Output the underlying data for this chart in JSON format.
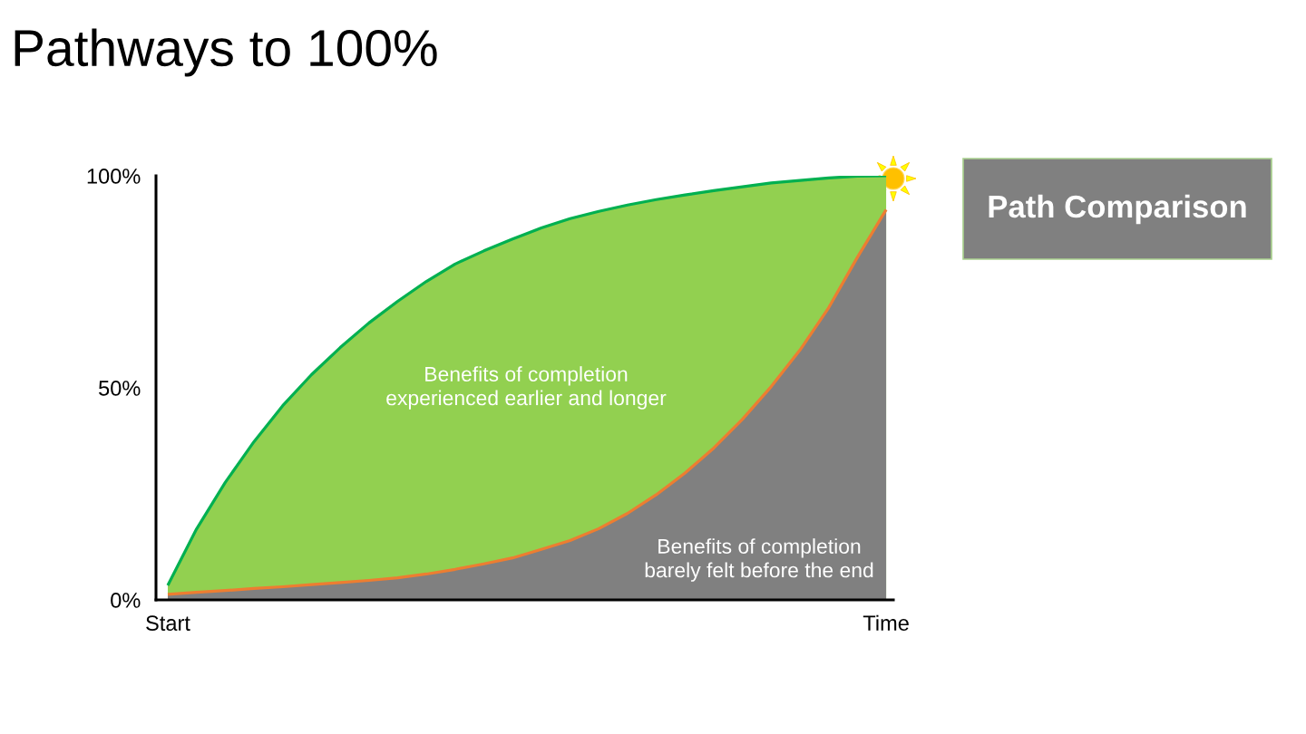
{
  "chart_data": {
    "type": "area",
    "title": "Pathways to 100%",
    "categories": [
      "Start",
      null,
      null,
      null,
      null,
      null,
      null,
      null,
      null,
      null,
      null,
      null,
      null,
      null,
      null,
      null,
      null,
      null,
      null,
      null,
      null,
      null,
      null,
      null,
      null,
      "Time"
    ],
    "ylim": [
      0,
      100
    ],
    "yticks": [
      {
        "value": 0,
        "label": "0%"
      },
      {
        "value": 50,
        "label": "50%"
      },
      {
        "value": 100,
        "label": "100%"
      }
    ],
    "series": [
      {
        "color": "#92d050",
        "values": [
          3.4,
          16.7,
          27.7,
          37.3,
          45.8,
          53.1,
          59.5,
          65.3,
          70.4,
          75.1,
          79.2,
          82.3,
          85.1,
          87.7,
          89.9,
          91.6,
          93.1,
          94.4,
          95.5,
          96.5,
          97.4,
          98.3,
          98.9,
          99.5,
          99.9,
          100
        ]
      },
      {
        "color": "#808080",
        "values": [
          1.3,
          1.8,
          2.2,
          2.7,
          3.1,
          3.6,
          4.1,
          4.6,
          5.2,
          6.1,
          7.2,
          8.5,
          9.9,
          11.9,
          14.0,
          16.8,
          20.4,
          24.8,
          29.9,
          35.8,
          42.6,
          50.3,
          58.9,
          68.9,
          80.8,
          92
        ]
      }
    ],
    "annotations": [
      "Benefits of completion\nexperienced earlier and longer",
      "Benefits of completion\nbarely felt before the end",
      "Path Comparison"
    ]
  }
}
